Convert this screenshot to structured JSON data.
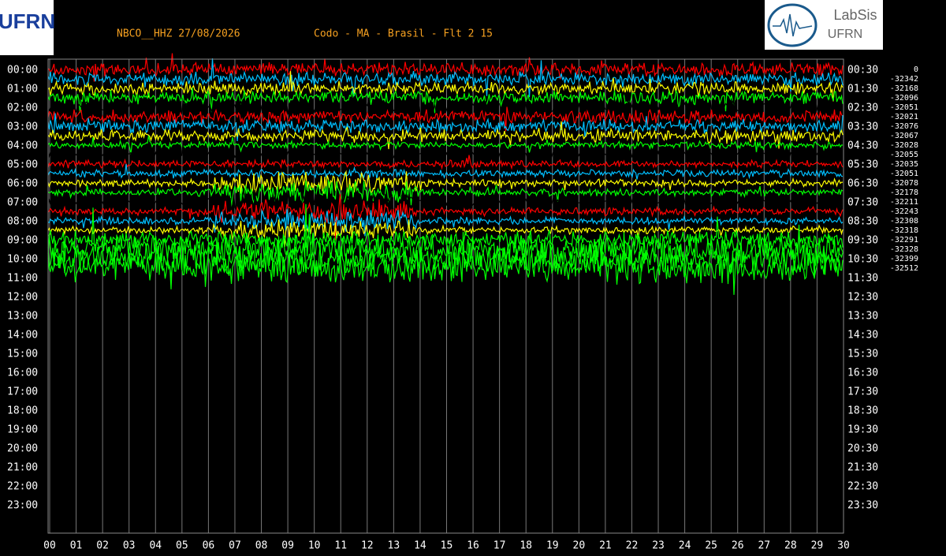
{
  "header": {
    "station": "NBCO__HHZ 27/08/2026",
    "location": "Codo - MA - Brasil - Flt 2 15"
  },
  "logos": {
    "left": "UFRN",
    "right_top": "LabSis",
    "right_bottom": "UFRN"
  },
  "left_labels": [
    "00:00",
    "01:00",
    "02:00",
    "03:00",
    "04:00",
    "05:00",
    "06:00",
    "07:00",
    "08:00",
    "09:00",
    "10:00",
    "11:00",
    "12:00",
    "13:00",
    "14:00",
    "15:00",
    "16:00",
    "17:00",
    "18:00",
    "19:00",
    "20:00",
    "21:00",
    "22:00",
    "23:00"
  ],
  "right_labels": [
    "00:30",
    "01:30",
    "02:30",
    "03:30",
    "04:30",
    "05:30",
    "06:30",
    "07:30",
    "08:30",
    "09:30",
    "10:30",
    "11:30",
    "12:30",
    "13:30",
    "14:30",
    "15:30",
    "16:30",
    "17:30",
    "18:30",
    "19:30",
    "20:30",
    "21:30",
    "22:30",
    "23:30"
  ],
  "offsets": [
    0,
    -32342,
    -32168,
    -32096,
    -32051,
    -32021,
    -32076,
    -32067,
    -32028,
    -32055,
    -32035,
    -32051,
    -32078,
    -32178,
    -32211,
    -32243,
    -32308,
    -32318,
    -32291,
    -32328,
    -32399,
    -32512
  ],
  "x_labels": [
    "00",
    "01",
    "02",
    "03",
    "04",
    "05",
    "06",
    "07",
    "08",
    "09",
    "10",
    "11",
    "12",
    "13",
    "14",
    "15",
    "16",
    "17",
    "18",
    "19",
    "20",
    "21",
    "22",
    "23",
    "24",
    "25",
    "26",
    "27",
    "28",
    "29",
    "30"
  ]
}
